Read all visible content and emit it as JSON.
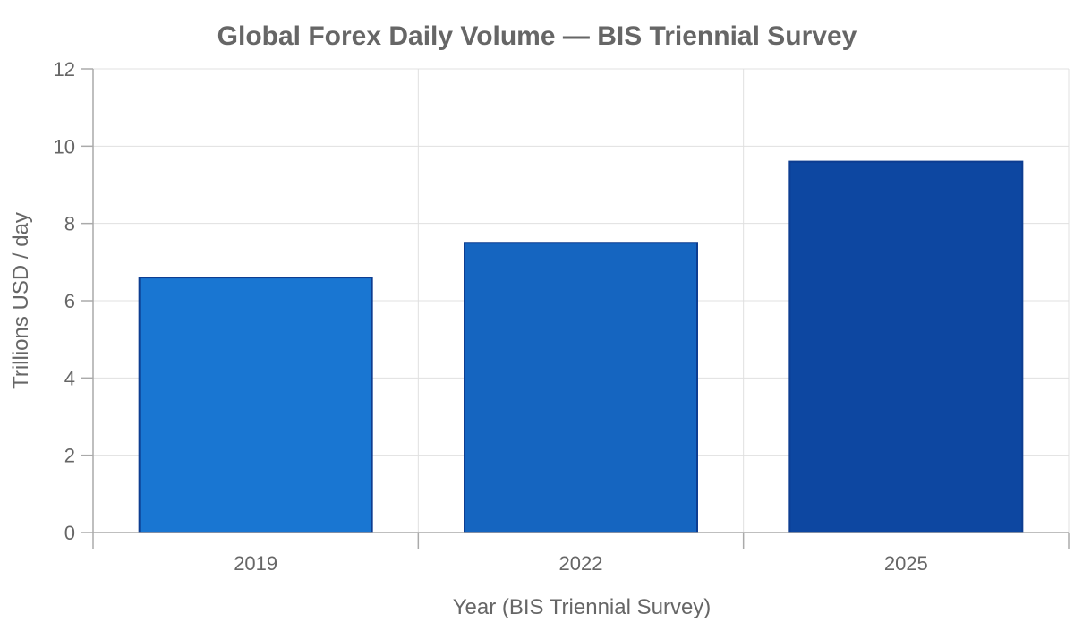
{
  "chart_data": {
    "type": "bar",
    "title": "Global Forex Daily Volume — BIS Triennial Survey",
    "xlabel": "Year (BIS Triennial Survey)",
    "ylabel": "Trillions USD / day",
    "categories": [
      "2019",
      "2022",
      "2025"
    ],
    "values": [
      6.6,
      7.5,
      9.6
    ],
    "ylim": [
      0,
      12
    ],
    "yticks": [
      "0",
      "2",
      "4",
      "6",
      "8",
      "10",
      "12"
    ],
    "grid": true,
    "colors": {
      "bar_fills": [
        "#1976d2",
        "#1565c0",
        "#0d47a1"
      ],
      "bar_border": "#0d3d91",
      "text": "#666666",
      "grid": "#e0e0e0",
      "axis": "#aaaaaa"
    }
  }
}
